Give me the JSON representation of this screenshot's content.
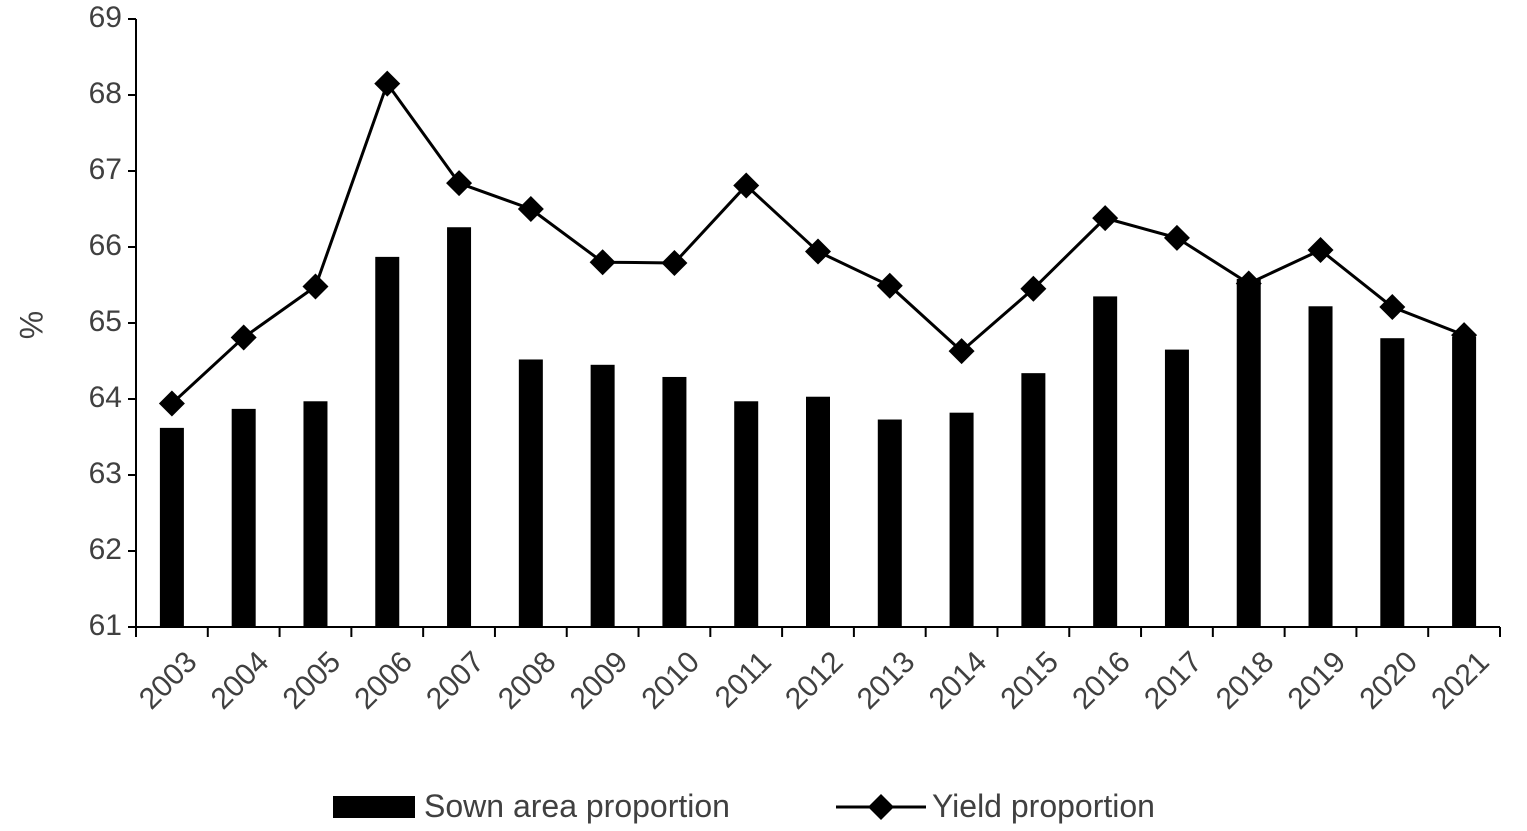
{
  "chart_data": {
    "type": "bar",
    "categories": [
      "2003",
      "2004",
      "2005",
      "2006",
      "2007",
      "2008",
      "2009",
      "2010",
      "2011",
      "2012",
      "2013",
      "2014",
      "2015",
      "2016",
      "2017",
      "2018",
      "2019",
      "2020",
      "2021"
    ],
    "series": [
      {
        "name": "Sown area proportion",
        "type": "bar",
        "color": "#000000",
        "values": [
          63.62,
          63.87,
          63.97,
          65.87,
          66.26,
          64.52,
          64.45,
          64.29,
          63.97,
          64.03,
          63.73,
          63.82,
          64.34,
          65.35,
          64.65,
          65.58,
          65.22,
          64.8,
          64.82
        ]
      },
      {
        "name": "Yield proportion",
        "type": "line",
        "marker": "diamond",
        "color": "#000000",
        "values": [
          63.94,
          64.81,
          65.48,
          68.15,
          66.84,
          66.5,
          65.8,
          65.79,
          66.81,
          65.94,
          65.49,
          64.63,
          65.45,
          66.38,
          66.12,
          65.52,
          65.96,
          65.21,
          64.84
        ]
      }
    ],
    "title": "",
    "xlabel": "",
    "ylabel": "%",
    "ylim": [
      61,
      69
    ],
    "yticks": [
      "61",
      "62",
      "63",
      "64",
      "65",
      "66",
      "67",
      "68",
      "69"
    ],
    "grid": false,
    "legend_position": "bottom"
  }
}
